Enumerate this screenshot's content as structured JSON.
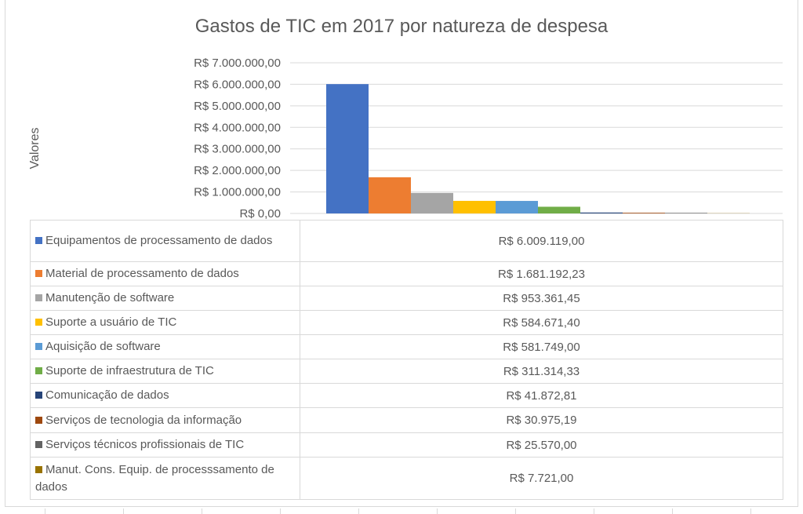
{
  "chart_data": {
    "type": "bar",
    "title": "Gastos de TIC em 2017 por natureza de despesa",
    "ylabel": "Valores",
    "ylim": [
      0,
      7000000
    ],
    "yticks": [
      "R$ 0,00",
      "R$ 1.000.000,00",
      "R$ 2.000.000,00",
      "R$ 3.000.000,00",
      "R$ 4.000.000,00",
      "R$ 5.000.000,00",
      "R$ 6.000.000,00",
      "R$ 7.000.000,00"
    ],
    "grid": true,
    "legend": "data-table",
    "series": [
      {
        "name": "Equipamentos de processamento de dados",
        "value": 6009119.0,
        "label": "R$ 6.009.119,00",
        "color": "#4472c4"
      },
      {
        "name": "Material de processamento de dados",
        "value": 1681192.23,
        "label": "R$ 1.681.192,23",
        "color": "#ed7d31"
      },
      {
        "name": "Manutenção de software",
        "value": 953361.45,
        "label": "R$ 953.361,45",
        "color": "#a5a5a5"
      },
      {
        "name": "Suporte a usuário de TIC",
        "value": 584671.4,
        "label": "R$ 584.671,40",
        "color": "#ffc000"
      },
      {
        "name": "Aquisição de software",
        "value": 581749.0,
        "label": "R$ 581.749,00",
        "color": "#5b9bd5"
      },
      {
        "name": "Suporte de infraestrutura de TIC",
        "value": 311314.33,
        "label": "R$ 311.314,33",
        "color": "#70ad47"
      },
      {
        "name": "Comunicação de dados",
        "value": 41872.81,
        "label": "R$ 41.872,81",
        "color": "#264478"
      },
      {
        "name": "Serviços de tecnologia da informação",
        "value": 30975.19,
        "label": "R$ 30.975,19",
        "color": "#9e480e"
      },
      {
        "name": "Serviços técnicos profissionais de TIC",
        "value": 25570.0,
        "label": "R$ 25.570,00",
        "color": "#636363"
      },
      {
        "name": "Manut. Cons. Equip. de processsamento de dados",
        "value": 7721.0,
        "label": "R$ 7.721,00",
        "color": "#997300"
      }
    ]
  }
}
